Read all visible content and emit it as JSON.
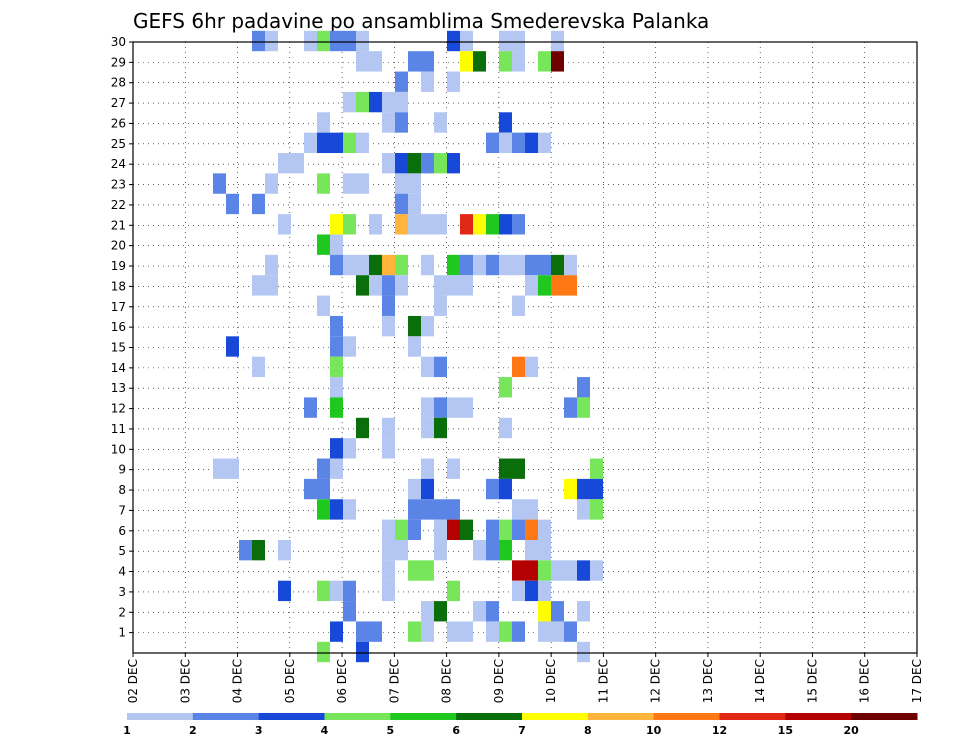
{
  "chart_data": {
    "type": "heatmap",
    "title": "GEFS 6hr padavine po ansamblima Smederevska Palanka",
    "xlabel": "",
    "ylabel": "",
    "x_ticks": [
      "02 DEC",
      "03 DEC",
      "04 DEC",
      "05 DEC",
      "06 DEC",
      "07 DEC",
      "08 DEC",
      "09 DEC",
      "10 DEC",
      "11 DEC",
      "12 DEC",
      "13 DEC",
      "14 DEC",
      "15 DEC",
      "16 DEC",
      "17 DEC"
    ],
    "y_ticks": [
      "1",
      "2",
      "3",
      "4",
      "5",
      "6",
      "7",
      "8",
      "9",
      "10",
      "11",
      "12",
      "13",
      "14",
      "15",
      "16",
      "17",
      "18",
      "19",
      "20",
      "21",
      "22",
      "23",
      "24",
      "25",
      "26",
      "27",
      "28",
      "29",
      "30"
    ],
    "xlim_steps": [
      0,
      60
    ],
    "ylim_members": [
      0,
      30
    ],
    "grid": true,
    "legend": "bottom",
    "color_levels": [
      "1",
      "2",
      "3",
      "4",
      "5",
      "6",
      "7",
      "8",
      "10",
      "12",
      "15",
      "20"
    ],
    "colors": [
      "#b4c6f2",
      "#5a84e6",
      "#1848d8",
      "#78e65a",
      "#1ec81e",
      "#0a6e0a",
      "#ffff00",
      "#ffb43c",
      "#ff7814",
      "#e02814",
      "#b40000",
      "#6e0000"
    ],
    "cells": [
      [
        9,
        30,
        1
      ],
      [
        10,
        30,
        0
      ],
      [
        13,
        30,
        0
      ],
      [
        14,
        30,
        3
      ],
      [
        15,
        30,
        1
      ],
      [
        16,
        30,
        1
      ],
      [
        17,
        30,
        0
      ],
      [
        24,
        30,
        2
      ],
      [
        25,
        30,
        0
      ],
      [
        28,
        30,
        0
      ],
      [
        29,
        30,
        0
      ],
      [
        32,
        30,
        0
      ],
      [
        17,
        29,
        0
      ],
      [
        18,
        29,
        0
      ],
      [
        21,
        29,
        1
      ],
      [
        22,
        29,
        1
      ],
      [
        25,
        29,
        6
      ],
      [
        26,
        29,
        5
      ],
      [
        28,
        29,
        3
      ],
      [
        29,
        29,
        0
      ],
      [
        31,
        29,
        3
      ],
      [
        32,
        29,
        11
      ],
      [
        20,
        28,
        1
      ],
      [
        22,
        28,
        0
      ],
      [
        24,
        28,
        0
      ],
      [
        16,
        27,
        0
      ],
      [
        17,
        27,
        3
      ],
      [
        18,
        27,
        2
      ],
      [
        19,
        27,
        0
      ],
      [
        20,
        27,
        0
      ],
      [
        14,
        26,
        0
      ],
      [
        19,
        26,
        0
      ],
      [
        20,
        26,
        1
      ],
      [
        23,
        26,
        0
      ],
      [
        28,
        26,
        2
      ],
      [
        13,
        25,
        0
      ],
      [
        14,
        25,
        2
      ],
      [
        15,
        25,
        2
      ],
      [
        16,
        25,
        3
      ],
      [
        17,
        25,
        0
      ],
      [
        27,
        25,
        1
      ],
      [
        28,
        25,
        0
      ],
      [
        29,
        25,
        1
      ],
      [
        30,
        25,
        2
      ],
      [
        31,
        25,
        0
      ],
      [
        11,
        24,
        0
      ],
      [
        12,
        24,
        0
      ],
      [
        19,
        24,
        0
      ],
      [
        20,
        24,
        2
      ],
      [
        21,
        24,
        5
      ],
      [
        22,
        24,
        1
      ],
      [
        23,
        24,
        3
      ],
      [
        24,
        24,
        2
      ],
      [
        6,
        23,
        1
      ],
      [
        10,
        23,
        0
      ],
      [
        14,
        23,
        3
      ],
      [
        16,
        23,
        0
      ],
      [
        17,
        23,
        0
      ],
      [
        20,
        23,
        0
      ],
      [
        21,
        23,
        0
      ],
      [
        7,
        22,
        1
      ],
      [
        9,
        22,
        1
      ],
      [
        20,
        22,
        1
      ],
      [
        21,
        22,
        0
      ],
      [
        11,
        21,
        0
      ],
      [
        15,
        21,
        6
      ],
      [
        16,
        21,
        3
      ],
      [
        18,
        21,
        0
      ],
      [
        20,
        21,
        7
      ],
      [
        21,
        21,
        0
      ],
      [
        22,
        21,
        0
      ],
      [
        23,
        21,
        0
      ],
      [
        25,
        21,
        9
      ],
      [
        26,
        21,
        6
      ],
      [
        27,
        21,
        4
      ],
      [
        28,
        21,
        2
      ],
      [
        29,
        21,
        1
      ],
      [
        14,
        20,
        4
      ],
      [
        15,
        20,
        0
      ],
      [
        10,
        19,
        0
      ],
      [
        15,
        19,
        1
      ],
      [
        16,
        19,
        0
      ],
      [
        17,
        19,
        0
      ],
      [
        18,
        19,
        5
      ],
      [
        19,
        19,
        7
      ],
      [
        20,
        19,
        3
      ],
      [
        22,
        19,
        0
      ],
      [
        24,
        19,
        4
      ],
      [
        25,
        19,
        1
      ],
      [
        26,
        19,
        0
      ],
      [
        27,
        19,
        1
      ],
      [
        28,
        19,
        0
      ],
      [
        29,
        19,
        0
      ],
      [
        30,
        19,
        1
      ],
      [
        31,
        19,
        1
      ],
      [
        32,
        19,
        5
      ],
      [
        33,
        19,
        0
      ],
      [
        9,
        18,
        0
      ],
      [
        10,
        18,
        0
      ],
      [
        17,
        18,
        5
      ],
      [
        18,
        18,
        0
      ],
      [
        19,
        18,
        1
      ],
      [
        20,
        18,
        0
      ],
      [
        23,
        18,
        0
      ],
      [
        24,
        18,
        0
      ],
      [
        25,
        18,
        0
      ],
      [
        30,
        18,
        0
      ],
      [
        31,
        18,
        4
      ],
      [
        32,
        18,
        8
      ],
      [
        33,
        18,
        8
      ],
      [
        14,
        17,
        0
      ],
      [
        19,
        17,
        1
      ],
      [
        23,
        17,
        0
      ],
      [
        29,
        17,
        0
      ],
      [
        15,
        16,
        1
      ],
      [
        19,
        16,
        0
      ],
      [
        21,
        16,
        5
      ],
      [
        22,
        16,
        0
      ],
      [
        7,
        15,
        2
      ],
      [
        15,
        15,
        1
      ],
      [
        16,
        15,
        0
      ],
      [
        21,
        15,
        0
      ],
      [
        9,
        14,
        0
      ],
      [
        15,
        14,
        3
      ],
      [
        22,
        14,
        0
      ],
      [
        23,
        14,
        1
      ],
      [
        29,
        14,
        8
      ],
      [
        30,
        14,
        0
      ],
      [
        15,
        13,
        0
      ],
      [
        28,
        13,
        3
      ],
      [
        34,
        13,
        1
      ],
      [
        13,
        12,
        1
      ],
      [
        15,
        12,
        4
      ],
      [
        22,
        12,
        0
      ],
      [
        23,
        12,
        1
      ],
      [
        24,
        12,
        0
      ],
      [
        25,
        12,
        0
      ],
      [
        33,
        12,
        1
      ],
      [
        34,
        12,
        3
      ],
      [
        17,
        11,
        5
      ],
      [
        19,
        11,
        0
      ],
      [
        22,
        11,
        0
      ],
      [
        23,
        11,
        5
      ],
      [
        28,
        11,
        0
      ],
      [
        15,
        10,
        2
      ],
      [
        16,
        10,
        0
      ],
      [
        19,
        10,
        0
      ],
      [
        6,
        9,
        0
      ],
      [
        7,
        9,
        0
      ],
      [
        14,
        9,
        1
      ],
      [
        15,
        9,
        0
      ],
      [
        22,
        9,
        0
      ],
      [
        24,
        9,
        0
      ],
      [
        28,
        9,
        5
      ],
      [
        29,
        9,
        5
      ],
      [
        35,
        9,
        3
      ],
      [
        13,
        8,
        1
      ],
      [
        14,
        8,
        1
      ],
      [
        21,
        8,
        0
      ],
      [
        22,
        8,
        2
      ],
      [
        27,
        8,
        1
      ],
      [
        28,
        8,
        2
      ],
      [
        33,
        8,
        6
      ],
      [
        34,
        8,
        2
      ],
      [
        35,
        8,
        2
      ],
      [
        14,
        7,
        4
      ],
      [
        15,
        7,
        2
      ],
      [
        16,
        7,
        0
      ],
      [
        21,
        7,
        1
      ],
      [
        22,
        7,
        1
      ],
      [
        23,
        7,
        1
      ],
      [
        24,
        7,
        1
      ],
      [
        29,
        7,
        0
      ],
      [
        30,
        7,
        0
      ],
      [
        34,
        7,
        0
      ],
      [
        35,
        7,
        3
      ],
      [
        19,
        6,
        0
      ],
      [
        20,
        6,
        3
      ],
      [
        21,
        6,
        1
      ],
      [
        23,
        6,
        0
      ],
      [
        24,
        6,
        10
      ],
      [
        25,
        6,
        5
      ],
      [
        27,
        6,
        1
      ],
      [
        28,
        6,
        3
      ],
      [
        29,
        6,
        1
      ],
      [
        30,
        6,
        8
      ],
      [
        31,
        6,
        0
      ],
      [
        8,
        5,
        1
      ],
      [
        9,
        5,
        5
      ],
      [
        11,
        5,
        0
      ],
      [
        19,
        5,
        0
      ],
      [
        20,
        5,
        0
      ],
      [
        23,
        5,
        0
      ],
      [
        26,
        5,
        0
      ],
      [
        27,
        5,
        1
      ],
      [
        28,
        5,
        4
      ],
      [
        30,
        5,
        0
      ],
      [
        31,
        5,
        0
      ],
      [
        19,
        4,
        0
      ],
      [
        21,
        4,
        3
      ],
      [
        22,
        4,
        3
      ],
      [
        29,
        4,
        10
      ],
      [
        30,
        4,
        10
      ],
      [
        31,
        4,
        3
      ],
      [
        32,
        4,
        0
      ],
      [
        33,
        4,
        0
      ],
      [
        34,
        4,
        2
      ],
      [
        35,
        4,
        0
      ],
      [
        11,
        3,
        2
      ],
      [
        14,
        3,
        3
      ],
      [
        15,
        3,
        0
      ],
      [
        16,
        3,
        1
      ],
      [
        19,
        3,
        0
      ],
      [
        24,
        3,
        3
      ],
      [
        29,
        3,
        0
      ],
      [
        30,
        3,
        2
      ],
      [
        31,
        3,
        0
      ],
      [
        16,
        2,
        1
      ],
      [
        22,
        2,
        0
      ],
      [
        23,
        2,
        5
      ],
      [
        26,
        2,
        0
      ],
      [
        27,
        2,
        1
      ],
      [
        31,
        2,
        6
      ],
      [
        32,
        2,
        1
      ],
      [
        34,
        2,
        0
      ],
      [
        15,
        1,
        2
      ],
      [
        17,
        1,
        1
      ],
      [
        18,
        1,
        1
      ],
      [
        21,
        1,
        3
      ],
      [
        22,
        1,
        0
      ],
      [
        24,
        1,
        0
      ],
      [
        25,
        1,
        0
      ],
      [
        27,
        1,
        0
      ],
      [
        28,
        1,
        3
      ],
      [
        29,
        1,
        1
      ],
      [
        31,
        1,
        0
      ],
      [
        32,
        1,
        0
      ],
      [
        33,
        1,
        1
      ],
      [
        14,
        0,
        3
      ],
      [
        17,
        0,
        2
      ],
      [
        34,
        0,
        0
      ]
    ]
  }
}
